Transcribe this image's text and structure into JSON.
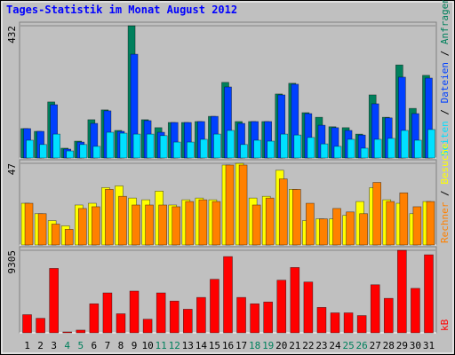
{
  "chart_data": {
    "type": "bar",
    "title": "Tages-Statistik im Monat August 2012",
    "title_color": "#0000ff",
    "categories": [
      "1",
      "2",
      "3",
      "4",
      "5",
      "6",
      "7",
      "8",
      "9",
      "10",
      "11",
      "12",
      "13",
      "14",
      "15",
      "16",
      "17",
      "18",
      "19",
      "20",
      "21",
      "22",
      "23",
      "24",
      "25",
      "26",
      "27",
      "28",
      "29",
      "30",
      "31"
    ],
    "weekend": [
      false,
      false,
      false,
      true,
      true,
      false,
      false,
      false,
      false,
      false,
      true,
      true,
      false,
      false,
      false,
      false,
      false,
      true,
      true,
      false,
      false,
      false,
      false,
      false,
      true,
      true,
      false,
      false,
      false,
      false,
      false
    ],
    "weekday_color": "#000000",
    "weekend_color": "#00805c",
    "legend_separator": "/",
    "panels": [
      {
        "ylim": [
          0,
          432
        ],
        "yticks": [
          432
        ],
        "series": [
          {
            "name": "Anfragen",
            "color": "#00805c",
            "values": [
              96,
              87,
              183,
              32,
              55,
              125,
              157,
              90,
              432,
              125,
              99,
              116,
              116,
              119,
              136,
              247,
              119,
              119,
              119,
              209,
              244,
              148,
              133,
              102,
              99,
              78,
              206,
              133,
              304,
              162,
              270
            ]
          },
          {
            "name": "Dateien",
            "color": "#0040ff",
            "values": [
              96,
              87,
              174,
              29,
              52,
              113,
              154,
              87,
              339,
              122,
              84,
              116,
              116,
              119,
              136,
              232,
              113,
              119,
              119,
              206,
              241,
              145,
              107,
              99,
              90,
              75,
              177,
              131,
              264,
              145,
              261
            ]
          },
          {
            "name": "Seiten",
            "color": "#00e0ff",
            "values": [
              58,
              44,
              78,
              23,
              44,
              38,
              84,
              81,
              78,
              78,
              73,
              52,
              52,
              61,
              78,
              90,
              44,
              58,
              55,
              78,
              75,
              67,
              46,
              38,
              61,
              32,
              61,
              64,
              90,
              58,
              93
            ]
          }
        ]
      },
      {
        "ylim": [
          0,
          47
        ],
        "yticks": [
          47
        ],
        "series": [
          {
            "name": "Besuche",
            "color": "#ffff00",
            "values": [
              24,
              18,
              14,
              11,
              23,
              24,
              33,
              34,
              27,
              26,
              31,
              23,
              26,
              27,
              26,
              46,
              47,
              27,
              28,
              43,
              32,
              14,
              15,
              15,
              17,
              25,
              33,
              26,
              24,
              18,
              25
            ]
          },
          {
            "name": "Rechner",
            "color": "#ff8000",
            "values": [
              24,
              18,
              12,
              9,
              21,
              22,
              32,
              28,
              23,
              23,
              23,
              22,
              25,
              26,
              25,
              46,
              46,
              23,
              27,
              38,
              32,
              24,
              15,
              21,
              19,
              18,
              36,
              25,
              30,
              22,
              25
            ]
          }
        ]
      },
      {
        "ylim": [
          0,
          9305
        ],
        "yticks": [
          9305
        ],
        "series": [
          {
            "name": "kB",
            "color": "#ff0000",
            "values": [
              2046,
              1637,
              7263,
              102,
              307,
              3274,
              4501,
              2148,
              4706,
              1535,
              4501,
              3581,
              2660,
              3990,
              6036,
              8593,
              3990,
              3274,
              3478,
              5933,
              7366,
              5729,
              2864,
              2251,
              2251,
              1944,
              5422,
              3887,
              9305,
              5013,
              8798
            ]
          }
        ]
      }
    ]
  }
}
